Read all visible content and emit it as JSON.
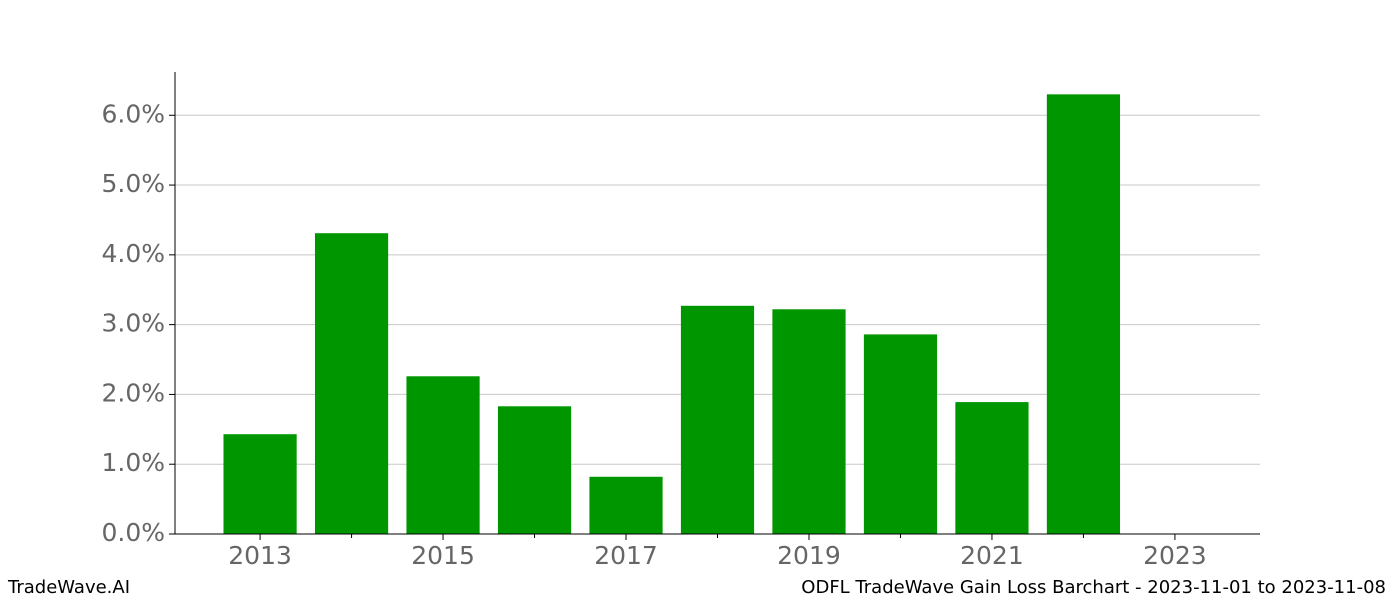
{
  "chart_data": {
    "type": "bar",
    "title": "ODFL TradeWave Gain Loss Barchart - 2023-11-01 to 2023-11-08",
    "watermark": "TradeWave.AI",
    "x": [
      2013,
      2014,
      2015,
      2016,
      2017,
      2018,
      2019,
      2020,
      2021,
      2022
    ],
    "values": [
      1.43,
      4.31,
      2.26,
      1.83,
      0.82,
      3.27,
      3.22,
      2.86,
      1.89,
      6.3
    ],
    "color": "#009600",
    "xlim": [
      2012.07,
      2023.93
    ],
    "xticks": [
      2013,
      2015,
      2017,
      2019,
      2021,
      2023
    ],
    "xminorticks": [
      2014,
      2016,
      2018,
      2020,
      2022
    ],
    "ylim": [
      0,
      6.62
    ],
    "yticks": [
      {
        "value": 0,
        "label": "0.0%"
      },
      {
        "value": 1,
        "label": "1.0%"
      },
      {
        "value": 2,
        "label": "2.0%"
      },
      {
        "value": 3,
        "label": "3.0%"
      },
      {
        "value": 4,
        "label": "4.0%"
      },
      {
        "value": 5,
        "label": "5.0%"
      },
      {
        "value": 6,
        "label": "6.0%"
      }
    ],
    "grid": true
  }
}
